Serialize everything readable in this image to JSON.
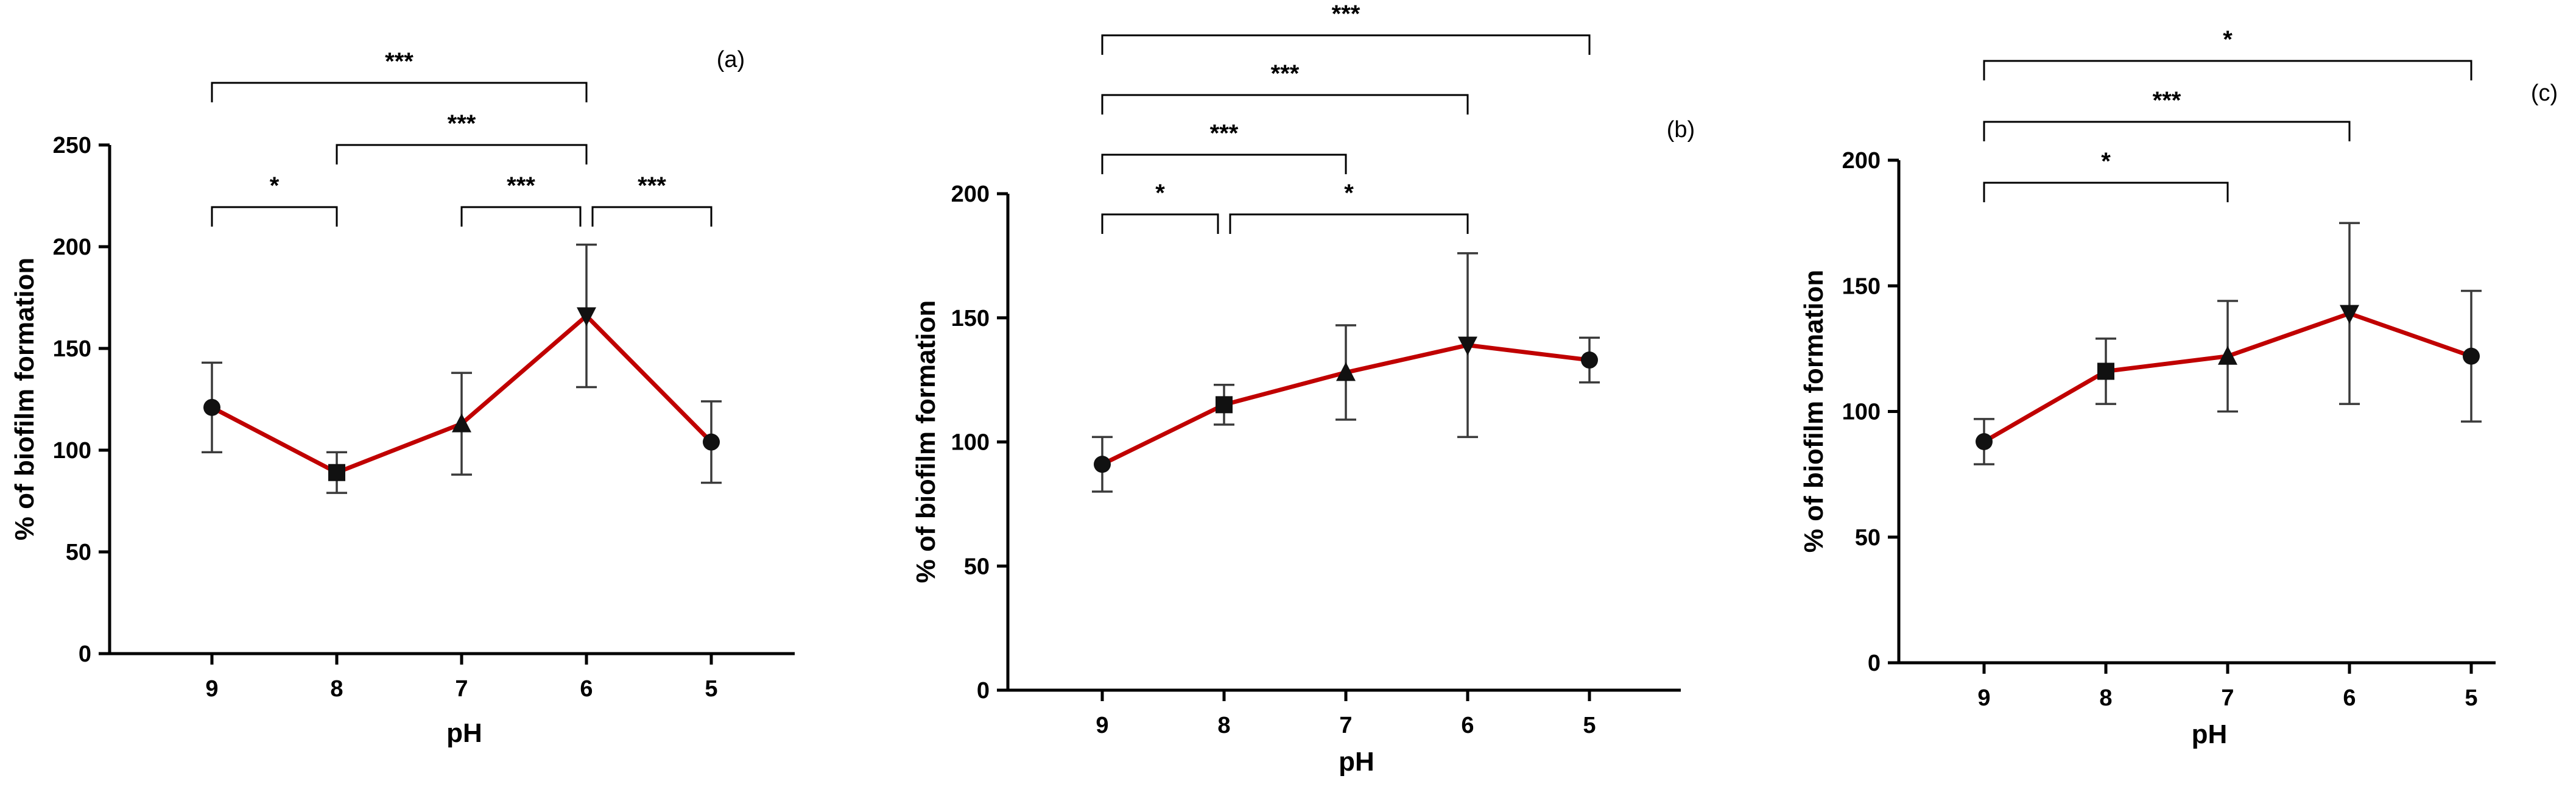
{
  "chart_data": [
    {
      "type": "line",
      "panel_label": "(a)",
      "xlabel": "pH",
      "ylabel": "% of biofilm formation",
      "categories": [
        "9",
        "8",
        "7",
        "6",
        "5"
      ],
      "ylim": [
        0,
        250
      ],
      "yticks": [
        "0",
        "50",
        "100",
        "150",
        "200",
        "250"
      ],
      "series": [
        {
          "name": "biofilm",
          "color": "#c00000",
          "values": [
            121,
            89,
            113,
            166,
            104
          ],
          "errors": [
            22,
            10,
            25,
            35,
            20
          ],
          "markers": [
            "circle",
            "square",
            "triangle-up",
            "triangle-down",
            "circle"
          ]
        }
      ],
      "significance": [
        {
          "from": "9",
          "to": "8",
          "label": "*",
          "level": 0
        },
        {
          "from": "7",
          "to": "6",
          "label": "***",
          "level": 0
        },
        {
          "from": "6",
          "to": "5",
          "label": "***",
          "level": 0
        },
        {
          "from": "8",
          "to": "6",
          "label": "***",
          "level": 1
        },
        {
          "from": "9",
          "to": "6",
          "label": "***",
          "level": 2
        }
      ]
    },
    {
      "type": "line",
      "panel_label": "(b)",
      "xlabel": "pH",
      "ylabel": "% of biofilm formation",
      "categories": [
        "9",
        "8",
        "7",
        "6",
        "5"
      ],
      "ylim": [
        0,
        200
      ],
      "yticks": [
        "0",
        "50",
        "100",
        "150",
        "200"
      ],
      "series": [
        {
          "name": "biofilm",
          "color": "#c00000",
          "values": [
            91,
            115,
            128,
            139,
            133
          ],
          "errors": [
            11,
            8,
            19,
            37,
            9
          ],
          "markers": [
            "circle",
            "square",
            "triangle-up",
            "triangle-down",
            "circle"
          ]
        }
      ],
      "significance": [
        {
          "from": "9",
          "to": "8",
          "label": "*",
          "level": 0
        },
        {
          "from": "8",
          "to": "6",
          "label": "*",
          "level": 0
        },
        {
          "from": "9",
          "to": "7",
          "label": "***",
          "level": 1
        },
        {
          "from": "9",
          "to": "6",
          "label": "***",
          "level": 2
        },
        {
          "from": "9",
          "to": "5",
          "label": "***",
          "level": 3
        }
      ]
    },
    {
      "type": "line",
      "panel_label": "(c)",
      "xlabel": "pH",
      "ylabel": "% of biofilm formation",
      "categories": [
        "9",
        "8",
        "7",
        "6",
        "5"
      ],
      "ylim": [
        0,
        200
      ],
      "yticks": [
        "0",
        "50",
        "100",
        "150",
        "200"
      ],
      "series": [
        {
          "name": "biofilm",
          "color": "#c00000",
          "values": [
            88,
            116,
            122,
            139,
            122
          ],
          "errors": [
            9,
            13,
            22,
            36,
            26
          ],
          "markers": [
            "circle",
            "square",
            "triangle-up",
            "triangle-down",
            "circle"
          ]
        }
      ],
      "significance": [
        {
          "from": "9",
          "to": "7",
          "label": "*",
          "level": 0
        },
        {
          "from": "9",
          "to": "6",
          "label": "***",
          "level": 1
        },
        {
          "from": "9",
          "to": "5",
          "label": "*",
          "level": 2
        }
      ]
    }
  ]
}
